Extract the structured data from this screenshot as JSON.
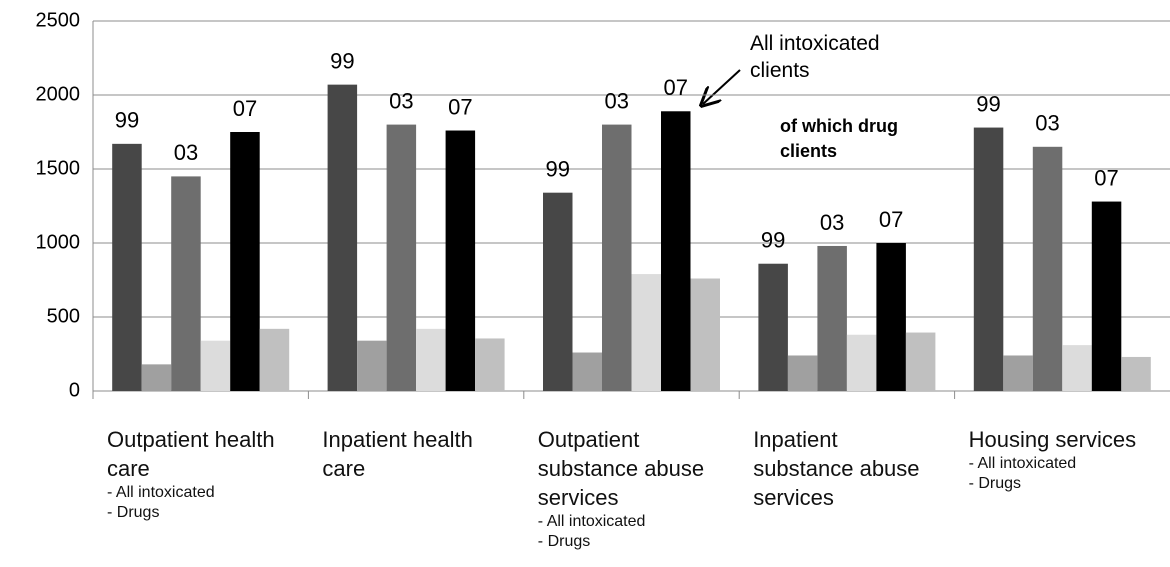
{
  "chart_data": {
    "type": "bar",
    "categories": [
      "Outpatient health care",
      "Inpatient health care",
      "Outpatient substance abuse services",
      "Inpatient substance abuse services",
      "Housing services"
    ],
    "sub_labels": [
      [
        "- All intoxicated",
        "- Drugs"
      ],
      null,
      [
        "- All intoxicated",
        "- Drugs"
      ],
      null,
      [
        "- All intoxicated",
        "- Drugs"
      ]
    ],
    "series": [
      {
        "name": "99",
        "color": "#474747",
        "values": [
          1670,
          2070,
          1340,
          860,
          1780
        ]
      },
      {
        "color": "#a0a0a0",
        "values": [
          180,
          340,
          260,
          240,
          240
        ]
      },
      {
        "name": "03",
        "color": "#6e6e6e",
        "values": [
          1450,
          1800,
          1800,
          980,
          1650
        ]
      },
      {
        "color": "#dcdcdc",
        "values": [
          340,
          420,
          790,
          380,
          310
        ]
      },
      {
        "name": "07",
        "color": "#000000",
        "values": [
          1750,
          1760,
          1890,
          1000,
          1280
        ]
      },
      {
        "color": "#c0c0c0",
        "values": [
          420,
          355,
          760,
          395,
          230
        ]
      }
    ],
    "annotations": [
      "All intoxicated clients",
      "of which drug clients"
    ],
    "ylim": [
      0,
      2500
    ],
    "yticks": [
      0,
      500,
      1000,
      1500,
      2000,
      2500
    ],
    "grid": true
  }
}
